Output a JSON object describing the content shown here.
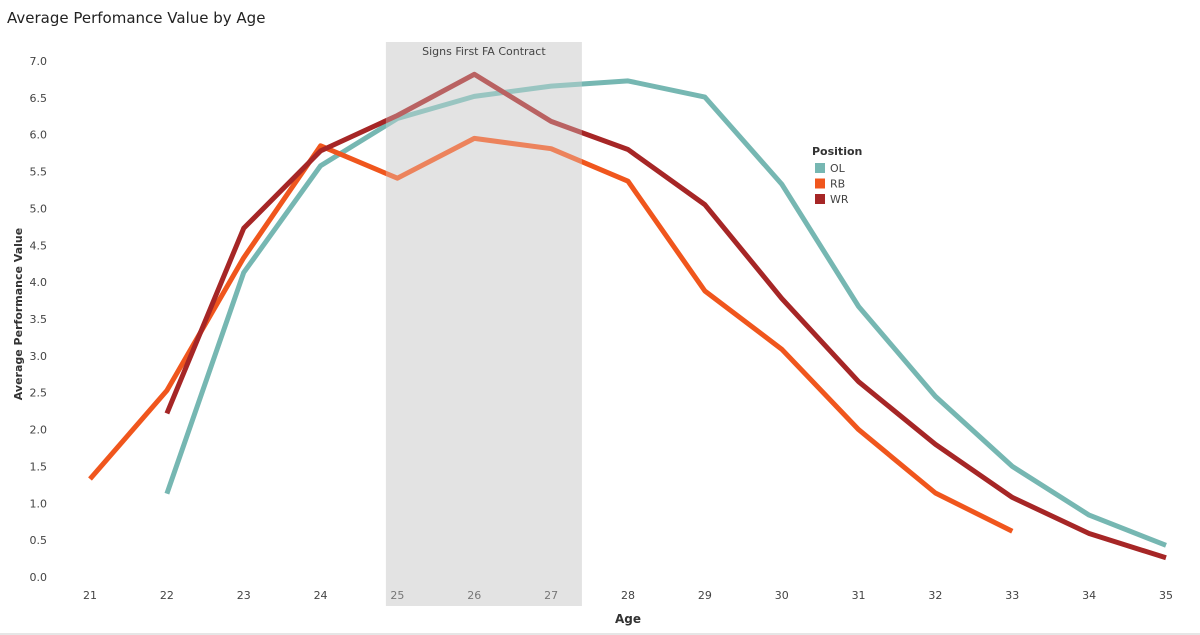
{
  "chart_data": {
    "type": "line",
    "title": "Average Perfomance Value by Age",
    "xlabel": "Age",
    "ylabel": "Average Performance Value",
    "x": [
      21,
      22,
      23,
      24,
      25,
      26,
      27,
      28,
      29,
      30,
      31,
      32,
      33,
      34,
      35
    ],
    "xlim": [
      21,
      35
    ],
    "ylim": [
      0,
      7.0
    ],
    "yticks": [
      "0.0",
      "0.5",
      "1.0",
      "1.5",
      "2.0",
      "2.5",
      "3.0",
      "3.5",
      "4.0",
      "4.5",
      "5.0",
      "5.5",
      "6.0",
      "6.5",
      "7.0"
    ],
    "series": [
      {
        "name": "OL",
        "color": "#76b7b2",
        "points": [
          [
            22,
            1.13
          ],
          [
            23,
            4.13
          ],
          [
            24,
            5.58
          ],
          [
            25,
            6.22
          ],
          [
            26,
            6.52
          ],
          [
            27,
            6.66
          ],
          [
            28,
            6.73
          ],
          [
            29,
            6.51
          ],
          [
            30,
            5.33
          ],
          [
            31,
            3.67
          ],
          [
            32,
            2.45
          ],
          [
            33,
            1.5
          ],
          [
            34,
            0.84
          ],
          [
            35,
            0.43
          ]
        ]
      },
      {
        "name": "RB",
        "color": "#f0561d",
        "points": [
          [
            21,
            1.33
          ],
          [
            22,
            2.53
          ],
          [
            23,
            4.33
          ],
          [
            24,
            5.85
          ],
          [
            25,
            5.41
          ],
          [
            26,
            5.95
          ],
          [
            27,
            5.81
          ],
          [
            28,
            5.37
          ],
          [
            29,
            3.88
          ],
          [
            30,
            3.09
          ],
          [
            31,
            2.0
          ],
          [
            32,
            1.14
          ],
          [
            33,
            0.62
          ]
        ]
      },
      {
        "name": "WR",
        "color": "#a62626",
        "points": [
          [
            22,
            2.22
          ],
          [
            23,
            4.73
          ],
          [
            24,
            5.78
          ],
          [
            25,
            6.26
          ],
          [
            26,
            6.82
          ],
          [
            27,
            6.18
          ],
          [
            28,
            5.8
          ],
          [
            29,
            5.05
          ],
          [
            30,
            3.78
          ],
          [
            31,
            2.65
          ],
          [
            32,
            1.8
          ],
          [
            33,
            1.08
          ],
          [
            34,
            0.59
          ],
          [
            35,
            0.26
          ]
        ]
      }
    ],
    "legend": {
      "title": "Position",
      "placement": "right"
    },
    "annotation": {
      "text": "Signs First FA Contract",
      "x_range": [
        24.85,
        27.4
      ]
    },
    "grid": false
  }
}
